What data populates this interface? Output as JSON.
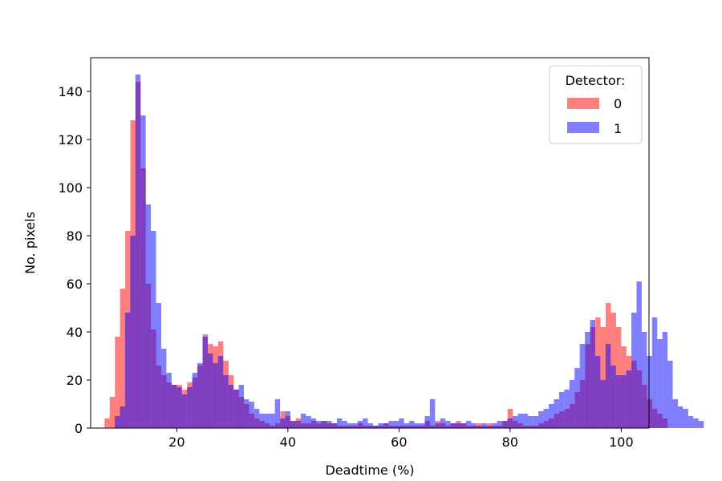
{
  "chart_data": {
    "type": "bar",
    "title": "",
    "xlabel": "Deadtime (%)",
    "ylabel": "No. pixels",
    "xlim": [
      4.5,
      105
    ],
    "ylim": [
      0,
      154
    ],
    "xticks": [
      20,
      40,
      60,
      80,
      100
    ],
    "yticks": [
      0,
      20,
      40,
      60,
      80,
      100,
      120,
      140
    ],
    "legend": {
      "title": "Detector:",
      "position": "top-right"
    },
    "series": [
      {
        "name": "0",
        "color": "#ff0000",
        "x0": 7.0,
        "bin_width": 0.93,
        "values": [
          4,
          13,
          38,
          58,
          82,
          128,
          144,
          108,
          60,
          41,
          26,
          22,
          19,
          18,
          18,
          16,
          19,
          21,
          26,
          39,
          35,
          34,
          36,
          28,
          22,
          16,
          13,
          10,
          6,
          4,
          3,
          2,
          1,
          2,
          7,
          5,
          3,
          4,
          2,
          2,
          3,
          2,
          3,
          2,
          2,
          1,
          1,
          1,
          1,
          2,
          1,
          1,
          1,
          1,
          2,
          1,
          1,
          1,
          1,
          1,
          1,
          1,
          3,
          1,
          3,
          2,
          1,
          2,
          3,
          2,
          1,
          1,
          2,
          1,
          2,
          1,
          1,
          3,
          8,
          3,
          2,
          1,
          1,
          1,
          2,
          3,
          4,
          6,
          7,
          8,
          10,
          15,
          20,
          35,
          42,
          46,
          42,
          52,
          48,
          42,
          34,
          30,
          28,
          24,
          18,
          12,
          8,
          6,
          4
        ]
      },
      {
        "name": "1",
        "color": "#0000ff",
        "x0": 7.9,
        "bin_width": 0.93,
        "values": [
          0,
          5,
          9,
          48,
          80,
          147,
          130,
          93,
          82,
          52,
          33,
          23,
          18,
          17,
          14,
          17,
          23,
          27,
          38,
          31,
          27,
          30,
          22,
          18,
          16,
          18,
          12,
          11,
          8,
          6,
          6,
          6,
          12,
          4,
          7,
          3,
          3,
          6,
          5,
          4,
          3,
          3,
          3,
          2,
          4,
          3,
          2,
          2,
          3,
          4,
          2,
          1,
          2,
          2,
          3,
          3,
          4,
          2,
          3,
          2,
          2,
          5,
          12,
          2,
          4,
          3,
          2,
          2,
          2,
          3,
          2,
          1,
          2,
          1,
          2,
          3,
          3,
          4,
          5,
          6,
          6,
          5,
          5,
          7,
          8,
          10,
          12,
          15,
          16,
          20,
          25,
          35,
          40,
          45,
          30,
          20,
          35,
          26,
          22,
          22,
          24,
          48,
          61,
          40,
          30,
          46,
          37,
          40,
          28,
          12,
          9,
          8,
          5,
          4,
          3
        ]
      }
    ]
  }
}
